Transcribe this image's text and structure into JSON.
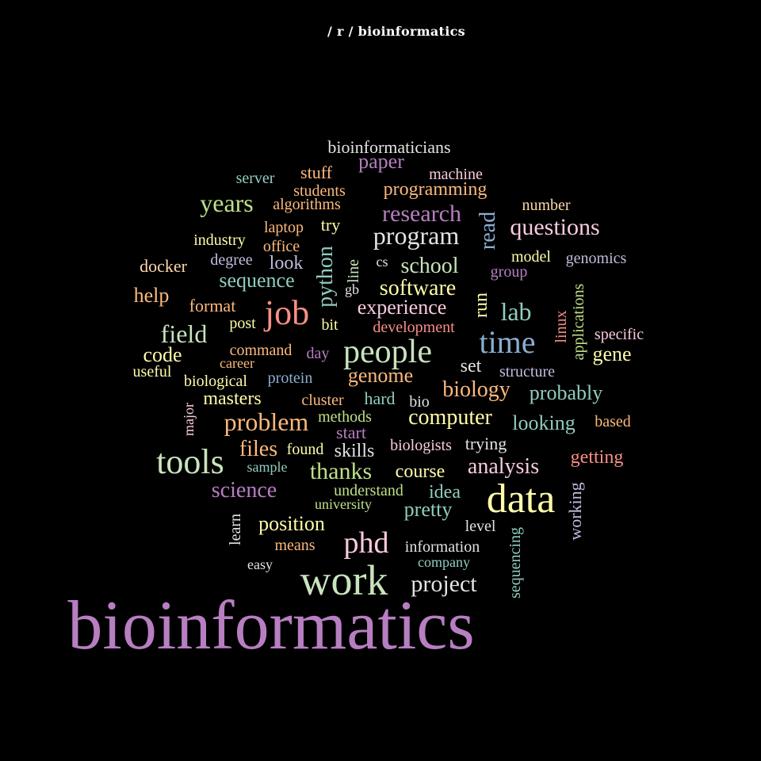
{
  "title": "/ r / bioinformatics",
  "palette": {
    "purple": "#b77ec1",
    "green": "#c8e4bc",
    "yellow": "#fffca9",
    "orange": "#fdb97c",
    "blue": "#8aaed2",
    "red": "#f88f86",
    "teal": "#90cdbf",
    "pink": "#f9cae0",
    "lime": "#bfe088",
    "grey": "#e3e3e3",
    "lavender": "#c0bcde",
    "peach": "#fdd8a8"
  },
  "words": [
    {
      "text": "bioinformatics",
      "color": "#b77ec1",
      "vertical": false
    },
    {
      "text": "work",
      "color": "#c8e4bc",
      "vertical": false
    },
    {
      "text": "data",
      "color": "#fffca9",
      "vertical": false
    },
    {
      "text": "tools",
      "color": "#c8e4bc",
      "vertical": false
    },
    {
      "text": "people",
      "color": "#c8e4bc",
      "vertical": false
    },
    {
      "text": "time",
      "color": "#8aaed2",
      "vertical": false
    },
    {
      "text": "job",
      "color": "#f88f86",
      "vertical": false
    },
    {
      "text": "phd",
      "color": "#f9cae0",
      "vertical": false
    },
    {
      "text": "program",
      "color": "#e3e3e3",
      "vertical": false
    },
    {
      "text": "problem",
      "color": "#fdb97c",
      "vertical": false
    },
    {
      "text": "project",
      "color": "#e3e3e3",
      "vertical": false
    },
    {
      "text": "research",
      "color": "#b77ec1",
      "vertical": false
    },
    {
      "text": "questions",
      "color": "#f9cae0",
      "vertical": false
    },
    {
      "text": "years",
      "color": "#bfe088",
      "vertical": false
    },
    {
      "text": "field",
      "color": "#c8e4bc",
      "vertical": false
    },
    {
      "text": "lab",
      "color": "#90cdbf",
      "vertical": false
    },
    {
      "text": "software",
      "color": "#fffca9",
      "vertical": false
    },
    {
      "text": "school",
      "color": "#c8e4bc",
      "vertical": false
    },
    {
      "text": "biology",
      "color": "#fdb97c",
      "vertical": false
    },
    {
      "text": "analysis",
      "color": "#f9cae0",
      "vertical": false
    },
    {
      "text": "computer",
      "color": "#fffca9",
      "vertical": false
    },
    {
      "text": "files",
      "color": "#fdb97c",
      "vertical": false
    },
    {
      "text": "thanks",
      "color": "#bfe088",
      "vertical": false
    },
    {
      "text": "science",
      "color": "#b77ec1",
      "vertical": false
    },
    {
      "text": "experience",
      "color": "#f9cae0",
      "vertical": false
    },
    {
      "text": "genome",
      "color": "#fdb97c",
      "vertical": false
    },
    {
      "text": "sequence",
      "color": "#90cdbf",
      "vertical": false
    },
    {
      "text": "probably",
      "color": "#90cdbf",
      "vertical": false
    },
    {
      "text": "looking",
      "color": "#90cdbf",
      "vertical": false
    },
    {
      "text": "position",
      "color": "#fffca9",
      "vertical": false
    },
    {
      "text": "pretty",
      "color": "#90cdbf",
      "vertical": false
    },
    {
      "text": "code",
      "color": "#fffca9",
      "vertical": false
    },
    {
      "text": "skills",
      "color": "#e3e3e3",
      "vertical": false
    },
    {
      "text": "masters",
      "color": "#fffca9",
      "vertical": false
    },
    {
      "text": "course",
      "color": "#fffca9",
      "vertical": false
    },
    {
      "text": "idea",
      "color": "#90cdbf",
      "vertical": false
    },
    {
      "text": "set",
      "color": "#e3e3e3",
      "vertical": false
    },
    {
      "text": "help",
      "color": "#fdb97c",
      "vertical": false
    },
    {
      "text": "paper",
      "color": "#b77ec1",
      "vertical": false
    },
    {
      "text": "programming",
      "color": "#fdb97c",
      "vertical": false
    },
    {
      "text": "getting",
      "color": "#f88f86",
      "vertical": false
    },
    {
      "text": "look",
      "color": "#c0bcde",
      "vertical": false
    },
    {
      "text": "bioinformaticians",
      "color": "#e3e3e3",
      "vertical": false
    },
    {
      "text": "trying",
      "color": "#e3e3e3",
      "vertical": false
    },
    {
      "text": "gene",
      "color": "#fffca9",
      "vertical": false
    },
    {
      "text": "hard",
      "color": "#90cdbf",
      "vertical": false
    },
    {
      "text": "start",
      "color": "#b77ec1",
      "vertical": false
    },
    {
      "text": "format",
      "color": "#fdb97c",
      "vertical": false
    },
    {
      "text": "docker",
      "color": "#fdd8a8",
      "vertical": false
    },
    {
      "text": "try",
      "color": "#fffca9",
      "vertical": false
    },
    {
      "text": "stuff",
      "color": "#fdb97c",
      "vertical": false
    },
    {
      "text": "industry",
      "color": "#fffca9",
      "vertical": false
    },
    {
      "text": "office",
      "color": "#fdb97c",
      "vertical": false
    },
    {
      "text": "laptop",
      "color": "#fdb97c",
      "vertical": false
    },
    {
      "text": "algorithms",
      "color": "#fdb97c",
      "vertical": false
    },
    {
      "text": "students",
      "color": "#fdb97c",
      "vertical": false
    },
    {
      "text": "server",
      "color": "#90cdbf",
      "vertical": false
    },
    {
      "text": "machine",
      "color": "#f9cae0",
      "vertical": false
    },
    {
      "text": "number",
      "color": "#fdd8a8",
      "vertical": false
    },
    {
      "text": "degree",
      "color": "#c0bcde",
      "vertical": false
    },
    {
      "text": "model",
      "color": "#fffca9",
      "vertical": false
    },
    {
      "text": "genomics",
      "color": "#c0bcde",
      "vertical": false
    },
    {
      "text": "group",
      "color": "#b77ec1",
      "vertical": false
    },
    {
      "text": "cs",
      "color": "#e3e3e3",
      "vertical": false
    },
    {
      "text": "gb",
      "color": "#e3e3e3",
      "vertical": false
    },
    {
      "text": "post",
      "color": "#fffca9",
      "vertical": false
    },
    {
      "text": "bit",
      "color": "#fffca9",
      "vertical": false
    },
    {
      "text": "development",
      "color": "#f88f86",
      "vertical": false
    },
    {
      "text": "specific",
      "color": "#f9cae0",
      "vertical": false
    },
    {
      "text": "command",
      "color": "#fdb97c",
      "vertical": false
    },
    {
      "text": "day",
      "color": "#b77ec1",
      "vertical": false
    },
    {
      "text": "career",
      "color": "#fdb97c",
      "vertical": false
    },
    {
      "text": "useful",
      "color": "#fffca9",
      "vertical": false
    },
    {
      "text": "protein",
      "color": "#8aaed2",
      "vertical": false
    },
    {
      "text": "biological",
      "color": "#fffca9",
      "vertical": false
    },
    {
      "text": "structure",
      "color": "#c0bcde",
      "vertical": false
    },
    {
      "text": "cluster",
      "color": "#fdb97c",
      "vertical": false
    },
    {
      "text": "bio",
      "color": "#e3e3e3",
      "vertical": false
    },
    {
      "text": "methods",
      "color": "#bfe088",
      "vertical": false
    },
    {
      "text": "based",
      "color": "#fdb97c",
      "vertical": false
    },
    {
      "text": "found",
      "color": "#fffca9",
      "vertical": false
    },
    {
      "text": "biologists",
      "color": "#f9cae0",
      "vertical": false
    },
    {
      "text": "sample",
      "color": "#90cdbf",
      "vertical": false
    },
    {
      "text": "understand",
      "color": "#bfe088",
      "vertical": false
    },
    {
      "text": "university",
      "color": "#bfe088",
      "vertical": false
    },
    {
      "text": "level",
      "color": "#e3e3e3",
      "vertical": false
    },
    {
      "text": "means",
      "color": "#fdb97c",
      "vertical": false
    },
    {
      "text": "information",
      "color": "#e3e3e3",
      "vertical": false
    },
    {
      "text": "company",
      "color": "#90cdbf",
      "vertical": false
    },
    {
      "text": "easy",
      "color": "#e3e3e3",
      "vertical": false
    },
    {
      "text": "python",
      "color": "#90cdbf",
      "vertical": true
    },
    {
      "text": "line",
      "color": "#c8e4bc",
      "vertical": true
    },
    {
      "text": "read",
      "color": "#8aaed2",
      "vertical": true
    },
    {
      "text": "run",
      "color": "#fffca9",
      "vertical": true
    },
    {
      "text": "linux",
      "color": "#f88f86",
      "vertical": true
    },
    {
      "text": "applications",
      "color": "#bfe088",
      "vertical": true
    },
    {
      "text": "major",
      "color": "#f9cae0",
      "vertical": true
    },
    {
      "text": "working",
      "color": "#c0bcde",
      "vertical": true
    },
    {
      "text": "learn",
      "color": "#e3e3e3",
      "vertical": true
    },
    {
      "text": "sequencing",
      "color": "#90cdbf",
      "vertical": true
    }
  ]
}
